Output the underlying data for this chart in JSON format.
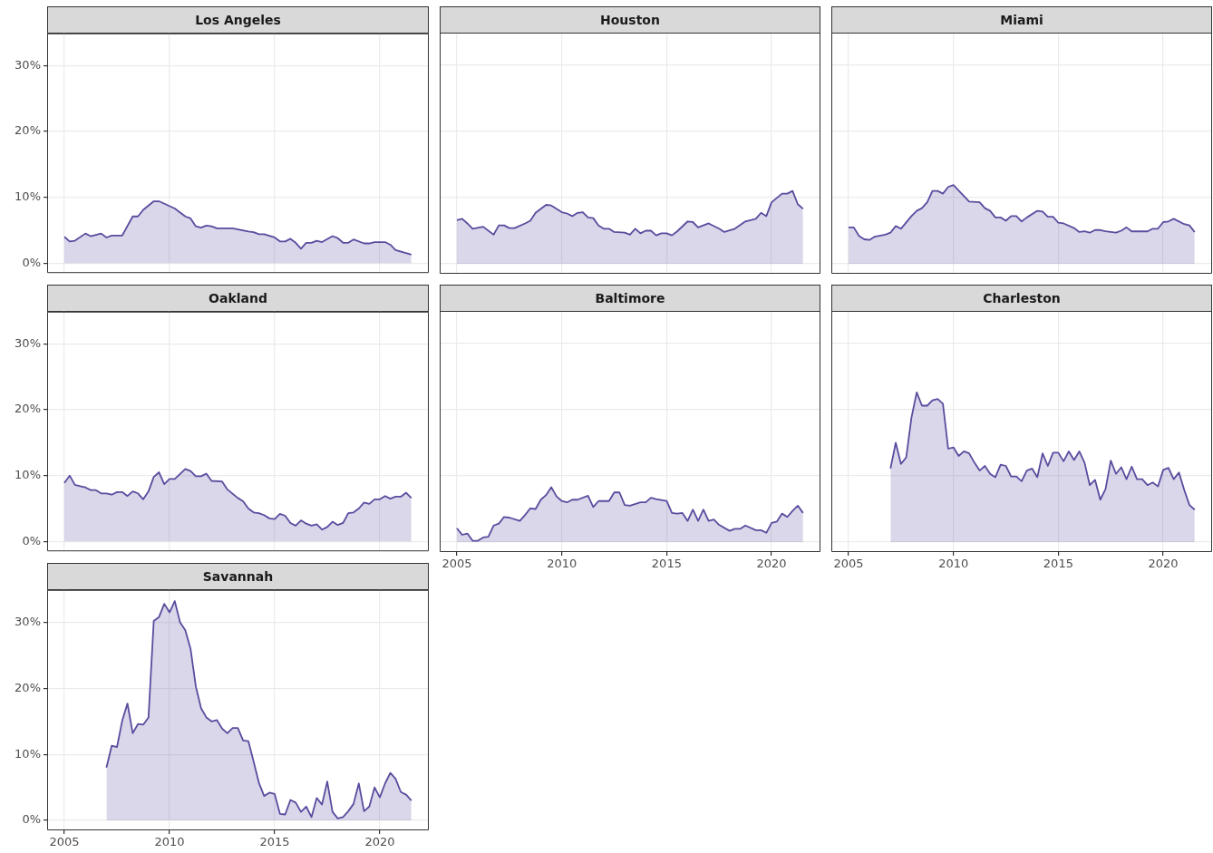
{
  "chart_data": [
    {
      "type": "area",
      "title": "Los Angeles",
      "color": "#5b4b9e",
      "grid": true,
      "tick_labels": "y",
      "xlim": [
        2004.18,
        2022.33
      ],
      "ylim": [
        -1.5,
        34.9
      ],
      "xticks": [
        2005,
        2010,
        2015,
        2020
      ],
      "yticks": [
        {
          "value": 0,
          "label": "0%"
        },
        {
          "value": 10,
          "label": "10%"
        },
        {
          "value": 20,
          "label": "20%"
        },
        {
          "value": 30,
          "label": "30%"
        }
      ],
      "x": [
        2005,
        2005.25,
        2005.5,
        2006,
        2006.25,
        2006.75,
        2007,
        2007.25,
        2007.75,
        2008.25,
        2008.5,
        2008.75,
        2009.25,
        2009.5,
        2010.25,
        2010.75,
        2011,
        2011.25,
        2011.5,
        2011.75,
        2012,
        2012.25,
        2012.75,
        2013,
        2013.75,
        2014,
        2014.25,
        2014.5,
        2015,
        2015.25,
        2015.5,
        2015.75,
        2016,
        2016.25,
        2016.5,
        2016.75,
        2017,
        2017.25,
        2017.75,
        2018,
        2018.25,
        2018.5,
        2018.75,
        2019.25,
        2019.5,
        2019.75,
        2020.25,
        2020.5,
        2020.75,
        2021.5
      ],
      "values": [
        4.0,
        3.3,
        3.4,
        4.5,
        4.1,
        4.5,
        3.9,
        4.2,
        4.2,
        7.1,
        7.1,
        8.1,
        9.4,
        9.4,
        8.3,
        7.1,
        6.8,
        5.6,
        5.4,
        5.7,
        5.6,
        5.3,
        5.3,
        5.3,
        4.8,
        4.7,
        4.4,
        4.4,
        3.9,
        3.3,
        3.3,
        3.7,
        3.1,
        2.2,
        3.1,
        3.1,
        3.4,
        3.2,
        4.1,
        3.8,
        3.1,
        3.1,
        3.6,
        3.0,
        3.0,
        3.2,
        3.2,
        2.8,
        2.0,
        1.3
      ]
    },
    {
      "type": "area",
      "title": "Houston",
      "color": "#5b4b9e",
      "grid": true,
      "tick_labels": false,
      "xlim": [
        2004.18,
        2022.33
      ],
      "ylim": [
        -1.5,
        34.9
      ],
      "xticks": [
        2005,
        2010,
        2015,
        2020
      ],
      "yticks": [
        0,
        10,
        20,
        30
      ],
      "x": [
        2005,
        2005.25,
        2005.5,
        2005.75,
        2006.25,
        2006.75,
        2007,
        2007.25,
        2007.5,
        2007.75,
        2008.25,
        2008.5,
        2008.75,
        2009.25,
        2009.5,
        2010,
        2010.25,
        2010.5,
        2010.75,
        2011,
        2011.25,
        2011.5,
        2011.75,
        2012,
        2012.25,
        2012.5,
        2013,
        2013.25,
        2013.5,
        2013.75,
        2014,
        2014.25,
        2014.5,
        2014.75,
        2015,
        2015.25,
        2015.5,
        2016,
        2016.25,
        2016.5,
        2017,
        2017.5,
        2017.75,
        2018.25,
        2018.75,
        2019.25,
        2019.5,
        2019.75,
        2020,
        2020.5,
        2020.75,
        2021,
        2021.25,
        2021.5
      ],
      "values": [
        6.6,
        6.8,
        6.1,
        5.3,
        5.6,
        4.4,
        5.8,
        5.8,
        5.4,
        5.4,
        6.1,
        6.5,
        7.7,
        8.9,
        8.8,
        7.8,
        7.6,
        7.2,
        7.7,
        7.8,
        7.0,
        6.9,
        5.8,
        5.3,
        5.3,
        4.8,
        4.7,
        4.4,
        5.3,
        4.6,
        5.0,
        5.0,
        4.3,
        4.6,
        4.6,
        4.3,
        4.9,
        6.4,
        6.3,
        5.5,
        6.1,
        5.3,
        4.8,
        5.3,
        6.4,
        6.8,
        7.7,
        7.2,
        9.3,
        10.6,
        10.6,
        11.0,
        9.0,
        8.3
      ]
    },
    {
      "type": "area",
      "title": "Miami",
      "color": "#5b4b9e",
      "grid": true,
      "tick_labels": false,
      "xlim": [
        2004.18,
        2022.33
      ],
      "ylim": [
        -1.5,
        34.9
      ],
      "xticks": [
        2005,
        2010,
        2015,
        2020
      ],
      "yticks": [
        0,
        10,
        20,
        30
      ],
      "x": [
        2005,
        2005.25,
        2005.5,
        2005.75,
        2006,
        2006.25,
        2006.75,
        2007,
        2007.25,
        2007.5,
        2008,
        2008.25,
        2008.5,
        2008.75,
        2009,
        2009.25,
        2009.5,
        2009.75,
        2010,
        2010.75,
        2011.25,
        2011.5,
        2011.75,
        2012,
        2012.25,
        2012.5,
        2012.75,
        2013,
        2013.25,
        2013.5,
        2014,
        2014.25,
        2014.5,
        2014.75,
        2015,
        2015.25,
        2015.75,
        2016,
        2016.25,
        2016.5,
        2016.75,
        2017,
        2017.25,
        2017.75,
        2018,
        2018.25,
        2018.5,
        2019.25,
        2019.5,
        2019.75,
        2020,
        2020.25,
        2020.5,
        2021,
        2021.25,
        2021.5
      ],
      "values": [
        5.5,
        5.5,
        4.2,
        3.7,
        3.6,
        4.1,
        4.4,
        4.7,
        5.7,
        5.3,
        7.2,
        8.0,
        8.4,
        9.3,
        11.0,
        11.0,
        10.6,
        11.6,
        11.9,
        9.4,
        9.3,
        8.4,
        8.0,
        7.0,
        7.0,
        6.5,
        7.2,
        7.2,
        6.4,
        7.0,
        8.0,
        7.9,
        7.1,
        7.1,
        6.2,
        6.1,
        5.4,
        4.8,
        4.9,
        4.7,
        5.1,
        5.1,
        4.9,
        4.7,
        5.0,
        5.5,
        4.9,
        4.9,
        5.3,
        5.3,
        6.3,
        6.4,
        6.8,
        6.0,
        5.8,
        4.8
      ]
    },
    {
      "type": "area",
      "title": "Oakland",
      "color": "#5b4b9e",
      "grid": true,
      "tick_labels": "y",
      "xlim": [
        2004.18,
        2022.33
      ],
      "ylim": [
        -1.5,
        34.9
      ],
      "xticks": [
        2005,
        2010,
        2015,
        2020
      ],
      "yticks": [
        {
          "value": 0,
          "label": "0%"
        },
        {
          "value": 10,
          "label": "10%"
        },
        {
          "value": 20,
          "label": "20%"
        },
        {
          "value": 30,
          "label": "30%"
        }
      ],
      "x": [
        2005,
        2005.25,
        2005.5,
        2005.75,
        2006,
        2006.25,
        2006.5,
        2006.75,
        2007,
        2007.25,
        2007.5,
        2007.75,
        2008,
        2008.25,
        2008.5,
        2008.75,
        2009,
        2009.25,
        2009.5,
        2009.75,
        2010,
        2010.25,
        2010.75,
        2011,
        2011.25,
        2011.5,
        2011.75,
        2012,
        2012.5,
        2012.75,
        2013.25,
        2013.5,
        2013.75,
        2014,
        2014.25,
        2014.5,
        2014.75,
        2015,
        2015.25,
        2015.5,
        2015.75,
        2016,
        2016.25,
        2016.5,
        2016.75,
        2017,
        2017.25,
        2017.5,
        2017.75,
        2018,
        2018.25,
        2018.5,
        2018.75,
        2019,
        2019.25,
        2019.5,
        2019.75,
        2020,
        2020.25,
        2020.5,
        2020.75,
        2021,
        2021.25,
        2021.5
      ],
      "values": [
        8.9,
        10.0,
        8.6,
        8.4,
        8.2,
        7.8,
        7.8,
        7.3,
        7.3,
        7.1,
        7.5,
        7.5,
        6.9,
        7.6,
        7.3,
        6.4,
        7.6,
        9.8,
        10.5,
        8.7,
        9.5,
        9.5,
        11.0,
        10.7,
        9.9,
        9.9,
        10.3,
        9.2,
        9.1,
        7.9,
        6.6,
        6.1,
        5.0,
        4.4,
        4.3,
        4.0,
        3.5,
        3.4,
        4.2,
        3.9,
        2.8,
        2.4,
        3.2,
        2.7,
        2.4,
        2.6,
        1.8,
        2.2,
        3.0,
        2.5,
        2.8,
        4.3,
        4.4,
        5.0,
        5.9,
        5.7,
        6.4,
        6.4,
        6.9,
        6.5,
        6.8,
        6.8,
        7.4,
        6.6
      ]
    },
    {
      "type": "area",
      "title": "Baltimore",
      "color": "#5b4b9e",
      "grid": true,
      "tick_labels": "x",
      "xlim": [
        2004.18,
        2022.33
      ],
      "ylim": [
        -1.5,
        34.9
      ],
      "xticks": [
        2005,
        2010,
        2015,
        2020
      ],
      "yticks": [
        0,
        10,
        20,
        30
      ],
      "x": [
        2005,
        2005.25,
        2005.5,
        2005.75,
        2006,
        2006.25,
        2006.5,
        2006.75,
        2007,
        2007.25,
        2007.5,
        2008,
        2008.25,
        2008.5,
        2008.75,
        2009,
        2009.25,
        2009.5,
        2009.75,
        2010,
        2010.25,
        2010.5,
        2010.75,
        2011.25,
        2011.5,
        2011.75,
        2012.25,
        2012.5,
        2012.75,
        2013,
        2013.25,
        2013.75,
        2014,
        2014.25,
        2014.5,
        2015,
        2015.25,
        2015.5,
        2015.75,
        2016,
        2016.25,
        2016.5,
        2016.75,
        2017,
        2017.25,
        2017.5,
        2018,
        2018.25,
        2018.5,
        2018.75,
        2019.25,
        2019.5,
        2019.75,
        2020,
        2020.25,
        2020.5,
        2020.75,
        2021,
        2021.25,
        2021.5
      ],
      "values": [
        2.1,
        1.1,
        1.3,
        0.2,
        0.2,
        0.7,
        0.8,
        2.5,
        2.8,
        3.8,
        3.7,
        3.2,
        4.1,
        5.1,
        5.0,
        6.4,
        7.1,
        8.3,
        6.9,
        6.2,
        6.0,
        6.4,
        6.4,
        7.0,
        5.3,
        6.2,
        6.2,
        7.5,
        7.5,
        5.6,
        5.5,
        6.0,
        6.0,
        6.7,
        6.5,
        6.2,
        4.4,
        4.3,
        4.4,
        3.2,
        4.9,
        3.2,
        4.9,
        3.2,
        3.4,
        2.6,
        1.7,
        2.0,
        2.0,
        2.5,
        1.8,
        1.8,
        1.4,
        2.9,
        3.1,
        4.3,
        3.8,
        4.7,
        5.5,
        4.4
      ]
    },
    {
      "type": "area",
      "title": "Charleston",
      "color": "#5b4b9e",
      "grid": true,
      "tick_labels": "x",
      "xlim": [
        2004.18,
        2022.33
      ],
      "ylim": [
        -1.5,
        34.9
      ],
      "xticks": [
        2005,
        2010,
        2015,
        2020
      ],
      "yticks": [
        0,
        10,
        20,
        30
      ],
      "x": [
        2007,
        2007.25,
        2007.5,
        2007.75,
        2008,
        2008.25,
        2008.5,
        2008.75,
        2009,
        2009.25,
        2009.5,
        2009.75,
        2010,
        2010.25,
        2010.5,
        2010.75,
        2011,
        2011.25,
        2011.5,
        2011.75,
        2012,
        2012.25,
        2012.5,
        2012.75,
        2013,
        2013.25,
        2013.5,
        2013.75,
        2014,
        2014.25,
        2014.5,
        2014.75,
        2015,
        2015.25,
        2015.5,
        2015.75,
        2016,
        2016.25,
        2016.5,
        2016.75,
        2017,
        2017.25,
        2017.5,
        2017.75,
        2018,
        2018.25,
        2018.5,
        2018.75,
        2019,
        2019.25,
        2019.5,
        2019.75,
        2020,
        2020.25,
        2020.5,
        2020.75,
        2021,
        2021.25,
        2021.5
      ],
      "values": [
        11.1,
        15.0,
        11.8,
        12.8,
        18.8,
        22.6,
        20.6,
        20.6,
        21.4,
        21.6,
        20.9,
        14.1,
        14.3,
        13.0,
        13.7,
        13.4,
        12.0,
        10.8,
        11.5,
        10.3,
        9.8,
        11.7,
        11.5,
        9.9,
        9.9,
        9.2,
        10.8,
        11.1,
        9.8,
        13.4,
        11.5,
        13.5,
        13.5,
        12.2,
        13.7,
        12.4,
        13.7,
        12.0,
        8.6,
        9.4,
        6.4,
        8.0,
        12.3,
        10.3,
        11.3,
        9.5,
        11.4,
        9.5,
        9.5,
        8.6,
        9.0,
        8.4,
        10.9,
        11.2,
        9.5,
        10.5,
        7.9,
        5.6,
        4.9
      ]
    },
    {
      "type": "area",
      "title": "Savannah",
      "color": "#5b4b9e",
      "grid": true,
      "xlim": [
        2004.18,
        2022.33
      ],
      "ylim": [
        -1.5,
        34.9
      ],
      "xticks": [
        2005,
        2010,
        2015,
        2020
      ],
      "yticks": [
        {
          "value": 0,
          "label": "0%"
        },
        {
          "value": 10,
          "label": "10%"
        },
        {
          "value": 20,
          "label": "20%"
        },
        {
          "value": 30,
          "label": "30%"
        }
      ],
      "x": [
        2007,
        2007.25,
        2007.5,
        2007.75,
        2008,
        2008.25,
        2008.5,
        2008.75,
        2009,
        2009.25,
        2009.5,
        2009.75,
        2010,
        2010.25,
        2010.5,
        2010.75,
        2011,
        2011.25,
        2011.5,
        2011.75,
        2012,
        2012.25,
        2012.5,
        2012.75,
        2013,
        2013.25,
        2013.5,
        2013.75,
        2014,
        2014.25,
        2014.5,
        2014.75,
        2015,
        2015.25,
        2015.5,
        2015.75,
        2016,
        2016.25,
        2016.5,
        2016.75,
        2017,
        2017.25,
        2017.5,
        2017.75,
        2018,
        2018.25,
        2018.5,
        2018.75,
        2019,
        2019.25,
        2019.5,
        2019.75,
        2020,
        2020.25,
        2020.5,
        2020.75,
        2021,
        2021.25,
        2021.5
      ],
      "values": [
        8.0,
        11.3,
        11.1,
        15.1,
        17.7,
        13.2,
        14.6,
        14.5,
        15.6,
        30.2,
        30.8,
        32.8,
        31.5,
        33.2,
        30.0,
        28.8,
        26.0,
        20.3,
        17.0,
        15.6,
        15.0,
        15.2,
        13.9,
        13.2,
        14.0,
        14.0,
        12.1,
        12.0,
        8.9,
        5.7,
        3.7,
        4.2,
        4.0,
        1.0,
        0.9,
        3.1,
        2.7,
        1.3,
        2.1,
        0.5,
        3.4,
        2.4,
        5.9,
        1.3,
        0.3,
        0.5,
        1.4,
        2.5,
        5.6,
        1.4,
        2.1,
        5.0,
        3.5,
        5.6,
        7.2,
        6.3,
        4.3,
        3.9,
        3.0
      ]
    }
  ]
}
